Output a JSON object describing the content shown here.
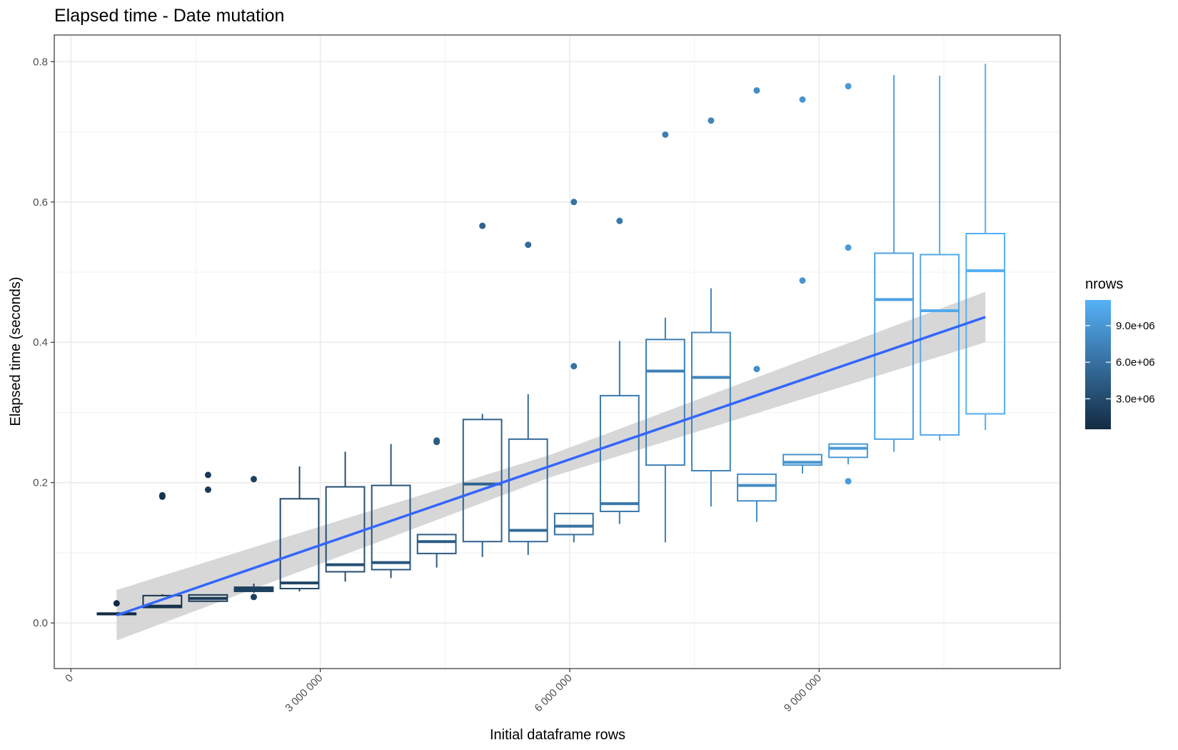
{
  "chart_data": {
    "type": "boxplot",
    "title": "Elapsed time - Date mutation",
    "xlabel": "Initial dataframe rows",
    "ylabel": "Elapsed time (seconds)",
    "xlim": [
      -200000,
      11900000
    ],
    "ylim": [
      -0.065,
      0.838
    ],
    "x_ticks": [
      {
        "value": 0,
        "label": "0"
      },
      {
        "value": 3000000,
        "label": "3 000 000"
      },
      {
        "value": 6000000,
        "label": "6 000 000"
      },
      {
        "value": 9000000,
        "label": "9 000 000"
      }
    ],
    "y_ticks": [
      {
        "value": 0.0,
        "label": "0.0"
      },
      {
        "value": 0.2,
        "label": "0.2"
      },
      {
        "value": 0.4,
        "label": "0.4"
      },
      {
        "value": 0.6,
        "label": "0.6"
      },
      {
        "value": 0.8,
        "label": "0.8"
      }
    ],
    "grid": true,
    "legend": {
      "title": "nrows",
      "position": "right",
      "type": "colorbar",
      "range": [
        500000,
        11100000
      ],
      "ticks": [
        {
          "value": 3000000,
          "label": "3.0e+06"
        },
        {
          "value": 6000000,
          "label": "6.0e+06"
        },
        {
          "value": 9000000,
          "label": "9.0e+06"
        }
      ],
      "color_low": "#132b43",
      "color_high": "#56b1f7"
    },
    "boxes": [
      {
        "x": 550000,
        "lower_whisker": 0.012,
        "q1": 0.012,
        "median": 0.013,
        "q3": 0.014,
        "upper_whisker": 0.015,
        "outliers": [
          0.028
        ]
      },
      {
        "x": 1100000,
        "lower_whisker": 0.021,
        "q1": 0.022,
        "median": 0.024,
        "q3": 0.039,
        "upper_whisker": 0.041,
        "outliers": [
          0.18,
          0.182
        ]
      },
      {
        "x": 1650000,
        "lower_whisker": 0.03,
        "q1": 0.031,
        "median": 0.035,
        "q3": 0.04,
        "upper_whisker": 0.041,
        "outliers": [
          0.19,
          0.211
        ]
      },
      {
        "x": 2200000,
        "lower_whisker": 0.043,
        "q1": 0.045,
        "median": 0.048,
        "q3": 0.051,
        "upper_whisker": 0.056,
        "outliers": [
          0.037,
          0.205
        ]
      },
      {
        "x": 2750000,
        "lower_whisker": 0.045,
        "q1": 0.049,
        "median": 0.057,
        "q3": 0.177,
        "upper_whisker": 0.223,
        "outliers": []
      },
      {
        "x": 3300000,
        "lower_whisker": 0.059,
        "q1": 0.073,
        "median": 0.083,
        "q3": 0.194,
        "upper_whisker": 0.244,
        "outliers": []
      },
      {
        "x": 3850000,
        "lower_whisker": 0.064,
        "q1": 0.076,
        "median": 0.086,
        "q3": 0.196,
        "upper_whisker": 0.255,
        "outliers": []
      },
      {
        "x": 4400000,
        "lower_whisker": 0.079,
        "q1": 0.099,
        "median": 0.116,
        "q3": 0.126,
        "upper_whisker": 0.126,
        "outliers": [
          0.258,
          0.26
        ]
      },
      {
        "x": 4950000,
        "lower_whisker": 0.094,
        "q1": 0.116,
        "median": 0.198,
        "q3": 0.29,
        "upper_whisker": 0.298,
        "outliers": [
          0.566
        ]
      },
      {
        "x": 5500000,
        "lower_whisker": 0.097,
        "q1": 0.116,
        "median": 0.132,
        "q3": 0.262,
        "upper_whisker": 0.326,
        "outliers": [
          0.539
        ]
      },
      {
        "x": 6050000,
        "lower_whisker": 0.115,
        "q1": 0.126,
        "median": 0.138,
        "q3": 0.156,
        "upper_whisker": 0.156,
        "outliers": [
          0.366,
          0.6
        ]
      },
      {
        "x": 6600000,
        "lower_whisker": 0.141,
        "q1": 0.159,
        "median": 0.17,
        "q3": 0.324,
        "upper_whisker": 0.402,
        "outliers": [
          0.573
        ]
      },
      {
        "x": 7150000,
        "lower_whisker": 0.115,
        "q1": 0.225,
        "median": 0.359,
        "q3": 0.404,
        "upper_whisker": 0.435,
        "outliers": [
          0.696
        ]
      },
      {
        "x": 7700000,
        "lower_whisker": 0.166,
        "q1": 0.217,
        "median": 0.35,
        "q3": 0.414,
        "upper_whisker": 0.477,
        "outliers": [
          0.716
        ]
      },
      {
        "x": 8250000,
        "lower_whisker": 0.144,
        "q1": 0.174,
        "median": 0.196,
        "q3": 0.212,
        "upper_whisker": 0.212,
        "outliers": [
          0.362,
          0.759
        ]
      },
      {
        "x": 8800000,
        "lower_whisker": 0.213,
        "q1": 0.225,
        "median": 0.229,
        "q3": 0.24,
        "upper_whisker": 0.24,
        "outliers": [
          0.488,
          0.746
        ]
      },
      {
        "x": 9350000,
        "lower_whisker": 0.226,
        "q1": 0.236,
        "median": 0.249,
        "q3": 0.255,
        "upper_whisker": 0.255,
        "outliers": [
          0.202,
          0.535,
          0.765
        ]
      },
      {
        "x": 9900000,
        "lower_whisker": 0.244,
        "q1": 0.262,
        "median": 0.461,
        "q3": 0.527,
        "upper_whisker": 0.781,
        "outliers": []
      },
      {
        "x": 10450000,
        "lower_whisker": 0.26,
        "q1": 0.268,
        "median": 0.445,
        "q3": 0.525,
        "upper_whisker": 0.78,
        "outliers": []
      },
      {
        "x": 11000000,
        "lower_whisker": 0.275,
        "q1": 0.298,
        "median": 0.502,
        "q3": 0.555,
        "upper_whisker": 0.797,
        "outliers": []
      }
    ],
    "trend": {
      "type": "linear fit with confidence band",
      "color": "#3366ff",
      "band_color": "#d3d3d3",
      "points": [
        {
          "x": 550000,
          "y": 0.011,
          "lower": -0.025,
          "upper": 0.047
        },
        {
          "x": 5775000,
          "y": 0.224,
          "lower": 0.208,
          "upper": 0.24
        },
        {
          "x": 11000000,
          "y": 0.436,
          "lower": 0.4,
          "upper": 0.472
        }
      ]
    }
  }
}
